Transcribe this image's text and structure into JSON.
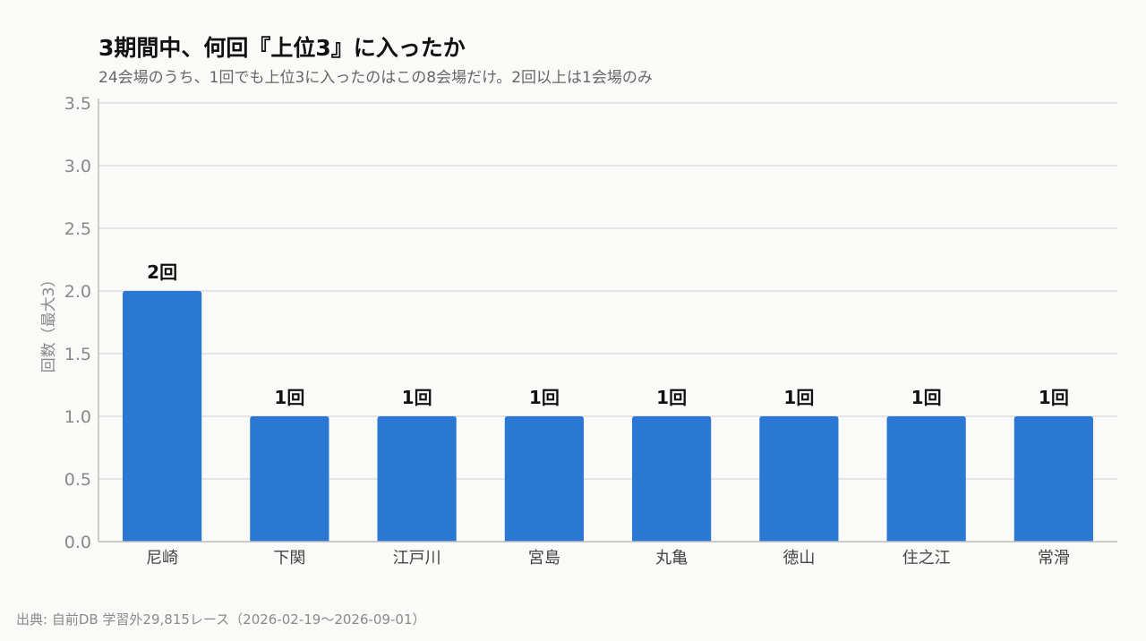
{
  "title": "3期間中、何回『上位3』に入ったか",
  "subtitle": "24会場のうち、1回でも上位3に入ったのはこの8会場だけ。2回以上は1会場のみ",
  "source": "出典: 自前DB 学習外29,815レース（2026-02-19〜2026-09-01）",
  "colors": {
    "bar": "#2a77d4",
    "grid": "#dddddd",
    "axis": "#bbbbbb",
    "background": "#fafaf8"
  },
  "chart_data": {
    "type": "bar",
    "title": "3期間中、何回『上位3』に入ったか",
    "subtitle": "24会場のうち、1回でも上位3に入ったのはこの8会場だけ。2回以上は1会場のみ",
    "xlabel": "",
    "ylabel": "回数（最大3）",
    "categories": [
      "尼崎",
      "下関",
      "江戸川",
      "宮島",
      "丸亀",
      "徳山",
      "住之江",
      "常滑"
    ],
    "values": [
      2,
      1,
      1,
      1,
      1,
      1,
      1,
      1
    ],
    "data_labels": [
      "2回",
      "1回",
      "1回",
      "1回",
      "1回",
      "1回",
      "1回",
      "1回"
    ],
    "ylim": [
      0,
      3.5
    ],
    "yticks": [
      "0.0",
      "0.5",
      "1.0",
      "1.5",
      "2.0",
      "2.5",
      "3.0",
      "3.5"
    ],
    "grid": true,
    "legend": "none"
  }
}
